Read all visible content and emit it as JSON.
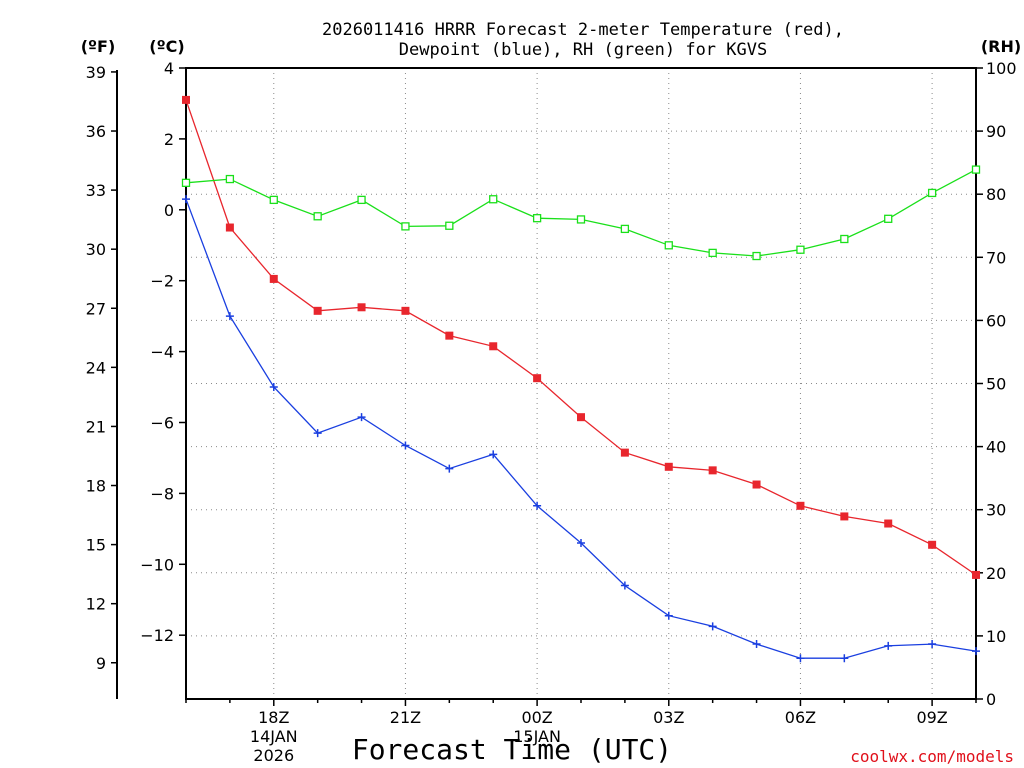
{
  "chart_data": {
    "type": "line",
    "title_line1": "2026011416 HRRR Forecast 2-meter Temperature (red),",
    "title_line2": "Dewpoint (blue), RH (green) for KGVS",
    "units": {
      "fahrenheit": "(ºF)",
      "celsius": "(ºC)",
      "rh": "(RH)"
    },
    "xlabel": "Forecast Time (UTC)",
    "credit": "coolwx.com/models",
    "x_hours": [
      16,
      17,
      18,
      19,
      20,
      21,
      22,
      23,
      24,
      25,
      26,
      27,
      28,
      29,
      30,
      31,
      32,
      33,
      34
    ],
    "x_range": [
      16,
      34
    ],
    "x_ticks": [
      {
        "hour": 18,
        "label": "18Z",
        "sub1": "14JAN",
        "sub2": "2026"
      },
      {
        "hour": 21,
        "label": "21Z",
        "sub1": "",
        "sub2": ""
      },
      {
        "hour": 24,
        "label": "00Z",
        "sub1": "15JAN",
        "sub2": ""
      },
      {
        "hour": 27,
        "label": "03Z",
        "sub1": "",
        "sub2": ""
      },
      {
        "hour": 30,
        "label": "06Z",
        "sub1": "",
        "sub2": ""
      },
      {
        "hour": 33,
        "label": "09Z",
        "sub1": "",
        "sub2": ""
      }
    ],
    "c_range": [
      -13.8,
      4
    ],
    "c_ticks": [
      "4",
      "2",
      "0",
      "−2",
      "−4",
      "−6",
      "−8",
      "−10",
      "−12"
    ],
    "f_ticks": [
      "39",
      "36",
      "33",
      "30",
      "27",
      "24",
      "21",
      "18",
      "15",
      "12",
      "9"
    ],
    "rh_range": [
      0,
      100
    ],
    "rh_ticks": [
      "100",
      "90",
      "80",
      "70",
      "60",
      "50",
      "40",
      "30",
      "20",
      "10",
      "0"
    ],
    "series": [
      {
        "name": "2-meter Temperature",
        "unit": "C",
        "color": "#e8262d",
        "marker": "filled-square",
        "values": [
          3.1,
          -0.5,
          -1.95,
          -2.85,
          -2.75,
          -2.85,
          -3.55,
          -3.85,
          -4.75,
          -5.85,
          -6.85,
          -7.25,
          -7.35,
          -7.75,
          -8.35,
          -8.65,
          -8.85,
          -9.45,
          -10.3
        ]
      },
      {
        "name": "Dewpoint",
        "unit": "C",
        "color": "#1a3fe0",
        "marker": "plus",
        "values": [
          0.3,
          -3.0,
          -5.0,
          -6.3,
          -5.85,
          -6.65,
          -7.3,
          -6.9,
          -8.35,
          -9.4,
          -10.6,
          -11.45,
          -11.75,
          -12.25,
          -12.65,
          -12.65,
          -12.3,
          -12.25,
          -12.45
        ]
      },
      {
        "name": "RH",
        "unit": "%",
        "color": "#1ae01a",
        "marker": "open-square",
        "values": [
          81.8,
          82.4,
          79.1,
          76.5,
          79.1,
          74.9,
          75.0,
          79.2,
          76.2,
          76.0,
          74.5,
          71.9,
          70.7,
          70.2,
          71.2,
          72.9,
          76.1,
          80.2,
          83.9
        ]
      }
    ]
  }
}
